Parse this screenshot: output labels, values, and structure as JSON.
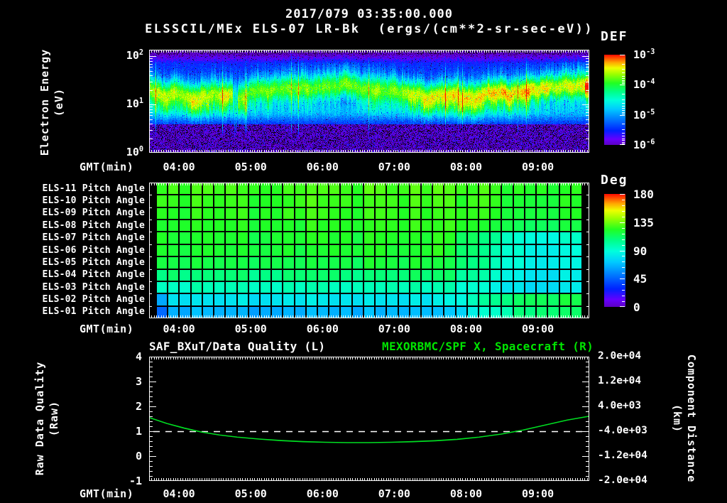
{
  "header": {
    "title_line1": "2017/079 03:35:00.000",
    "title_line2": "ELSSCIL/MEx ELS-07 LR-Bk  (ergs/(cm**2-sr-sec-eV))"
  },
  "labels": {
    "gmt": "GMT(min)"
  },
  "colors": {
    "background": "#000000",
    "text": "#ffffff",
    "accent_green": "#00e400",
    "curve_green": "#00dd22"
  },
  "panel_energy": {
    "ylabel_line1": "Electron Energy",
    "ylabel_line2": "(eV)",
    "ytick_base": "10",
    "ytick_exps": [
      "2",
      "1",
      "0"
    ],
    "colorbar_title": "DEF",
    "colorbar_tick_base": "10",
    "colorbar_tick_exps": [
      "-3",
      "-4",
      "-5",
      "-6"
    ]
  },
  "panel_pitch": {
    "row_labels": [
      "ELS-11 Pitch Angle",
      "ELS-10 Pitch Angle",
      "ELS-09 Pitch Angle",
      "ELS-08 Pitch Angle",
      "ELS-07 Pitch Angle",
      "ELS-06 Pitch Angle",
      "ELS-05 Pitch Angle",
      "ELS-04 Pitch Angle",
      "ELS-03 Pitch Angle",
      "ELS-02 Pitch Angle",
      "ELS-01 Pitch Angle"
    ],
    "colorbar_title": "Deg",
    "colorbar_ticks": [
      "180",
      "135",
      "90",
      "45",
      "0"
    ]
  },
  "panel_line": {
    "title_left": "SAF_BXuT/Data Quality (L)",
    "title_right": "MEXORBMC/SPF X, Spacecraft (R)",
    "ylabel_left_line1": "Raw Data Quality",
    "ylabel_left_line2": "(Raw)",
    "ylabel_right_line1": "Component Distance",
    "ylabel_right_line2": "(km)",
    "yticks_left": [
      "4",
      "3",
      "2",
      "1",
      "0",
      "-1"
    ],
    "yticks_right": [
      "2.0e+04",
      "1.2e+04",
      "4.0e+03",
      "-4.0e+03",
      "-1.2e+04",
      "-2.0e+04"
    ]
  },
  "time_axis": {
    "start_label": "03:35",
    "span_minutes": 368,
    "tick_labels": [
      "04:00",
      "05:00",
      "06:00",
      "07:00",
      "08:00",
      "09:00"
    ],
    "tick_minutes": [
      25,
      85,
      145,
      205,
      265,
      325
    ]
  },
  "chart_data": [
    {
      "type": "heatmap",
      "title": "ELSSCIL/MEx ELS-07 LR-Bk",
      "units": "ergs/(cm**2-sr-sec-eV)",
      "xlabel": "GMT(min)",
      "x_ticks": [
        "04:00",
        "05:00",
        "06:00",
        "07:00",
        "08:00",
        "09:00"
      ],
      "x_range": [
        "03:35",
        "09:43"
      ],
      "ylabel": "Electron Energy (eV)",
      "y_scale": "log",
      "y_ticks": [
        "1e2",
        "1e1",
        "1e0"
      ],
      "y_range_ev": [
        1,
        140
      ],
      "colorbar": {
        "label": "DEF",
        "ticks": [
          "1e-3",
          "1e-4",
          "1e-5",
          "1e-6"
        ],
        "scale": "log",
        "style": "rainbow"
      },
      "pattern": {
        "band_center_frac": 0.4,
        "band_halfwidth_frac": 0.13,
        "band_peak_flux": "~1e-4 green/yellow, brighter toward right, orange hotspot at right edge",
        "cyan_shelf_frac": 0.6,
        "dark_speckle_below_frac": 0.72
      }
    },
    {
      "type": "heatmap",
      "xlabel": "GMT(min)",
      "x_ticks": [
        "04:00",
        "05:00",
        "06:00",
        "07:00",
        "08:00",
        "09:00"
      ],
      "rows": [
        "ELS-11 Pitch Angle",
        "ELS-10 Pitch Angle",
        "ELS-09 Pitch Angle",
        "ELS-08 Pitch Angle",
        "ELS-07 Pitch Angle",
        "ELS-06 Pitch Angle",
        "ELS-05 Pitch Angle",
        "ELS-04 Pitch Angle",
        "ELS-03 Pitch Angle",
        "ELS-02 Pitch Angle",
        "ELS-01 Pitch Angle"
      ],
      "colorbar": {
        "label": "Deg",
        "ticks": [
          180,
          135,
          90,
          45,
          0
        ],
        "style": "rainbow"
      },
      "n_cols": 37,
      "row_deg_left": [
        103,
        102,
        101,
        100,
        99,
        98,
        96,
        91,
        83,
        73,
        64
      ],
      "row_deg_right": [
        100,
        99,
        98,
        95,
        79,
        77,
        76,
        74,
        72,
        95,
        92
      ],
      "right_region_start_frac": 0.68,
      "first_col_bottom_deg_drop": 12
    },
    {
      "type": "line",
      "xlabel": "GMT(min)",
      "x_ticks": [
        "04:00",
        "05:00",
        "06:00",
        "07:00",
        "08:00",
        "09:00"
      ],
      "ylabel_left": "Raw Data Quality (Raw)",
      "ylim_left": [
        -1,
        4
      ],
      "ylabel_right": "Component Distance (km)",
      "ylim_right": [
        -20000,
        20000
      ],
      "series": [
        {
          "name": "SAF_BXuT/Data Quality",
          "axis": "left",
          "style": "dashed",
          "color": "#ffffff",
          "value_constant": 1
        },
        {
          "name": "MEXORBMC/SPF X, Spacecraft",
          "axis": "right",
          "style": "solid",
          "color": "#00dd22",
          "x_frac": [
            0,
            0.04,
            0.08,
            0.12,
            0.16,
            0.2,
            0.25,
            0.3,
            0.35,
            0.4,
            0.45,
            0.5,
            0.55,
            0.6,
            0.65,
            0.7,
            0.75,
            0.8,
            0.85,
            0.9,
            0.95,
            1.0
          ],
          "km": [
            350,
            -1500,
            -3000,
            -4300,
            -5200,
            -5900,
            -6500,
            -7000,
            -7350,
            -7550,
            -7650,
            -7650,
            -7550,
            -7350,
            -7050,
            -6600,
            -5900,
            -4900,
            -3600,
            -2000,
            -400,
            800
          ]
        }
      ]
    }
  ]
}
